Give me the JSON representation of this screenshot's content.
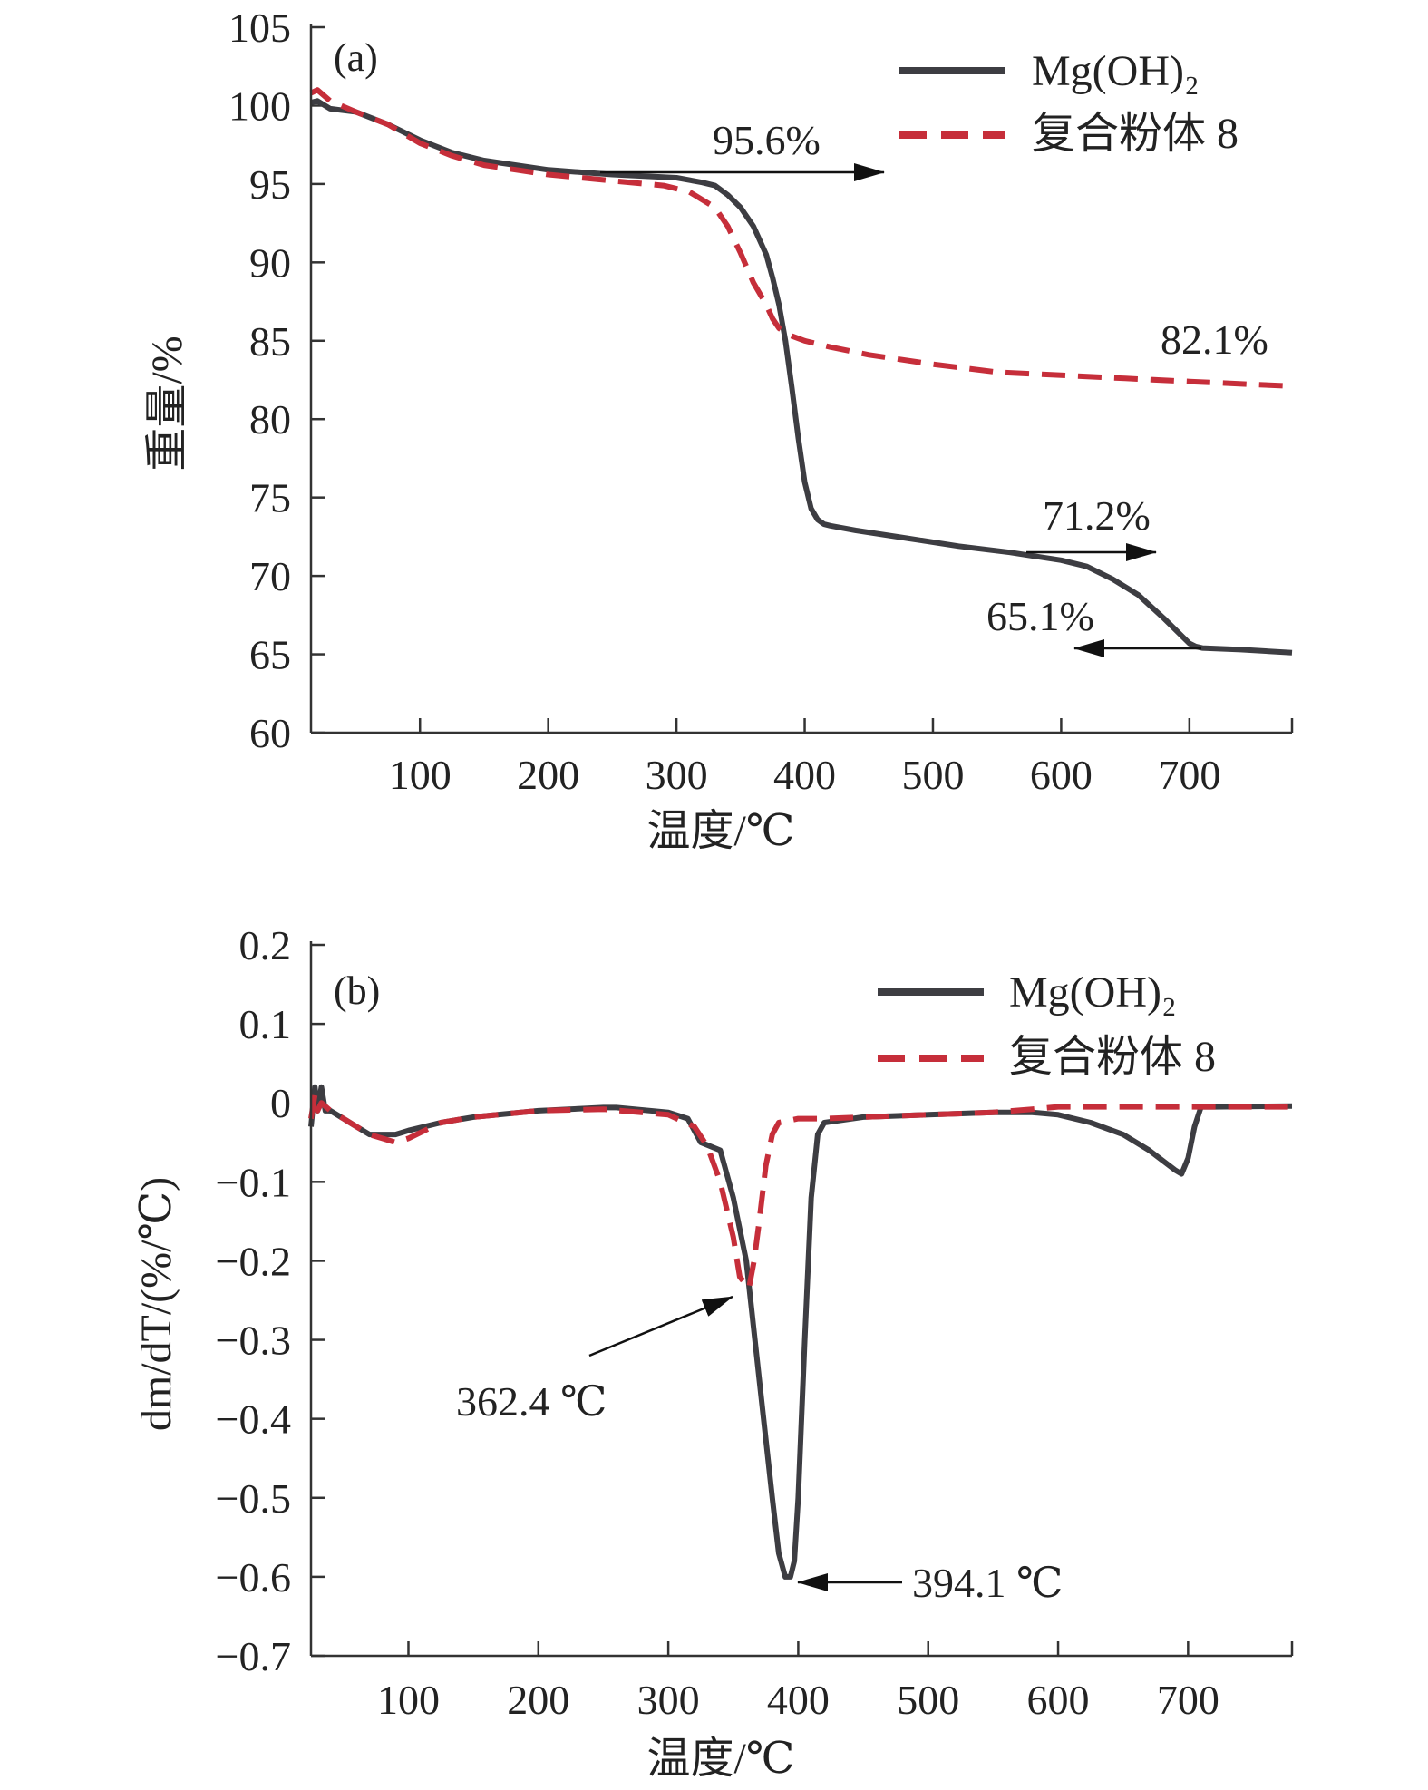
{
  "chart_data": [
    {
      "type": "line",
      "panel_label": "(a)",
      "xlabel": "温度/℃",
      "ylabel": "重量/%",
      "xlim": [
        15,
        780
      ],
      "ylim": [
        60,
        105
      ],
      "xticks": [
        100,
        200,
        300,
        400,
        500,
        600,
        700
      ],
      "yticks": [
        60,
        65,
        70,
        75,
        80,
        85,
        90,
        95,
        100,
        105
      ],
      "legend": {
        "position": "top-right",
        "entries": [
          "Mg(OH)₂",
          "复合粉体 8"
        ]
      },
      "series": [
        {
          "name": "Mg(OH)₂",
          "color": "#3d3d42",
          "style": "solid",
          "x": [
            15,
            20,
            30,
            50,
            75,
            100,
            125,
            150,
            200,
            250,
            300,
            320,
            330,
            340,
            350,
            360,
            370,
            375,
            380,
            385,
            390,
            395,
            400,
            405,
            410,
            415,
            420,
            440,
            480,
            520,
            560,
            600,
            620,
            640,
            660,
            680,
            700,
            705,
            710,
            740,
            780
          ],
          "y": [
            100.2,
            100.3,
            99.8,
            99.6,
            98.8,
            97.8,
            97.0,
            96.5,
            95.9,
            95.6,
            95.4,
            95.1,
            94.9,
            94.3,
            93.5,
            92.3,
            90.5,
            89.0,
            87.3,
            85.0,
            82.0,
            78.8,
            76.0,
            74.3,
            73.6,
            73.3,
            73.2,
            72.9,
            72.4,
            71.9,
            71.5,
            71.0,
            70.6,
            69.8,
            68.8,
            67.3,
            65.7,
            65.5,
            65.4,
            65.3,
            65.1
          ]
        },
        {
          "name": "复合粉体 8",
          "color": "#c62e3a",
          "style": "dashed",
          "x": [
            15,
            20,
            30,
            50,
            75,
            100,
            125,
            150,
            200,
            250,
            290,
            310,
            330,
            340,
            350,
            360,
            370,
            375,
            380,
            385,
            390,
            400,
            420,
            450,
            500,
            550,
            600,
            650,
            700,
            780
          ],
          "y": [
            100.8,
            101.0,
            100.3,
            99.6,
            98.8,
            97.6,
            96.8,
            96.2,
            95.6,
            95.2,
            94.9,
            94.5,
            93.5,
            92.3,
            90.6,
            88.7,
            87.3,
            86.4,
            85.8,
            85.5,
            85.3,
            85.0,
            84.6,
            84.1,
            83.5,
            83.0,
            82.8,
            82.6,
            82.4,
            82.1
          ]
        }
      ],
      "annotations": [
        {
          "text": "95.6%",
          "arrow": "right",
          "x_from": 248,
          "x_to": 455,
          "y": 95.6
        },
        {
          "text": "82.1%",
          "arrow": null,
          "x": 755,
          "y": 82.8
        },
        {
          "text": "71.2%",
          "arrow": "right",
          "x_from": 575,
          "x_to": 673,
          "y": 71.2
        },
        {
          "text": "65.1%",
          "arrow": "left",
          "x_from": 705,
          "x_to": 603,
          "y": 65.1
        }
      ]
    },
    {
      "type": "line",
      "panel_label": "(b)",
      "xlabel": "温度/℃",
      "ylabel": "dm/dT/(%/℃)",
      "xlim": [
        25,
        780
      ],
      "ylim": [
        -0.7,
        0.2
      ],
      "xticks": [
        100,
        200,
        300,
        400,
        500,
        600,
        700
      ],
      "yticks": [
        -0.7,
        -0.6,
        -0.5,
        -0.4,
        -0.3,
        -0.2,
        -0.1,
        0,
        0.1,
        0.2
      ],
      "ytick_labels": [
        "−0.7",
        "−0.6",
        "−0.5",
        "−0.4",
        "−0.3",
        "−0.2",
        "−0.1",
        "0",
        "0.1",
        "0.2"
      ],
      "legend": {
        "position": "top-right",
        "entries": [
          "Mg(OH)₂",
          "复合粉体 8"
        ]
      },
      "series": [
        {
          "name": "Mg(OH)₂",
          "color": "#3d3d42",
          "style": "solid",
          "x": [
            25,
            28,
            30,
            33,
            36,
            40,
            50,
            60,
            70,
            80,
            90,
            100,
            125,
            150,
            200,
            250,
            260,
            300,
            315,
            325,
            340,
            350,
            360,
            370,
            380,
            385,
            390,
            394,
            397,
            400,
            405,
            410,
            415,
            420,
            450,
            500,
            550,
            580,
            600,
            625,
            650,
            670,
            690,
            695,
            700,
            705,
            710,
            720,
            780
          ],
          "y": [
            -0.03,
            0.02,
            -0.01,
            0.02,
            -0.01,
            -0.01,
            -0.02,
            -0.03,
            -0.04,
            -0.04,
            -0.04,
            -0.035,
            -0.025,
            -0.018,
            -0.01,
            -0.006,
            -0.006,
            -0.012,
            -0.02,
            -0.05,
            -0.06,
            -0.12,
            -0.2,
            -0.35,
            -0.5,
            -0.57,
            -0.6,
            -0.6,
            -0.58,
            -0.5,
            -0.3,
            -0.12,
            -0.04,
            -0.025,
            -0.018,
            -0.015,
            -0.012,
            -0.012,
            -0.015,
            -0.025,
            -0.04,
            -0.06,
            -0.085,
            -0.09,
            -0.07,
            -0.03,
            -0.005,
            -0.005,
            -0.004
          ]
        },
        {
          "name": "复合粉体 8",
          "color": "#c62e3a",
          "style": "dashed",
          "x": [
            25,
            28,
            30,
            33,
            40,
            50,
            60,
            70,
            80,
            90,
            100,
            125,
            150,
            200,
            250,
            300,
            320,
            330,
            340,
            350,
            355,
            362,
            366,
            370,
            375,
            380,
            385,
            400,
            420,
            450,
            500,
            550,
            580,
            600,
            650,
            700,
            780
          ],
          "y": [
            -0.02,
            0.01,
            -0.01,
            0.0,
            -0.01,
            -0.02,
            -0.03,
            -0.04,
            -0.045,
            -0.05,
            -0.045,
            -0.025,
            -0.018,
            -0.01,
            -0.008,
            -0.015,
            -0.03,
            -0.055,
            -0.1,
            -0.17,
            -0.22,
            -0.235,
            -0.2,
            -0.15,
            -0.08,
            -0.04,
            -0.025,
            -0.02,
            -0.02,
            -0.018,
            -0.015,
            -0.012,
            -0.008,
            -0.005,
            -0.005,
            -0.005,
            -0.005
          ]
        }
      ],
      "annotations": [
        {
          "text": "362.4 ℃",
          "arrow": "up-right",
          "x_from": 318,
          "y_from": -0.33,
          "x_to": 360,
          "y_to": -0.233
        },
        {
          "text": "394.1 ℃",
          "arrow": "left",
          "x_from": 480,
          "x_to": 396,
          "y": -0.6
        }
      ]
    }
  ]
}
